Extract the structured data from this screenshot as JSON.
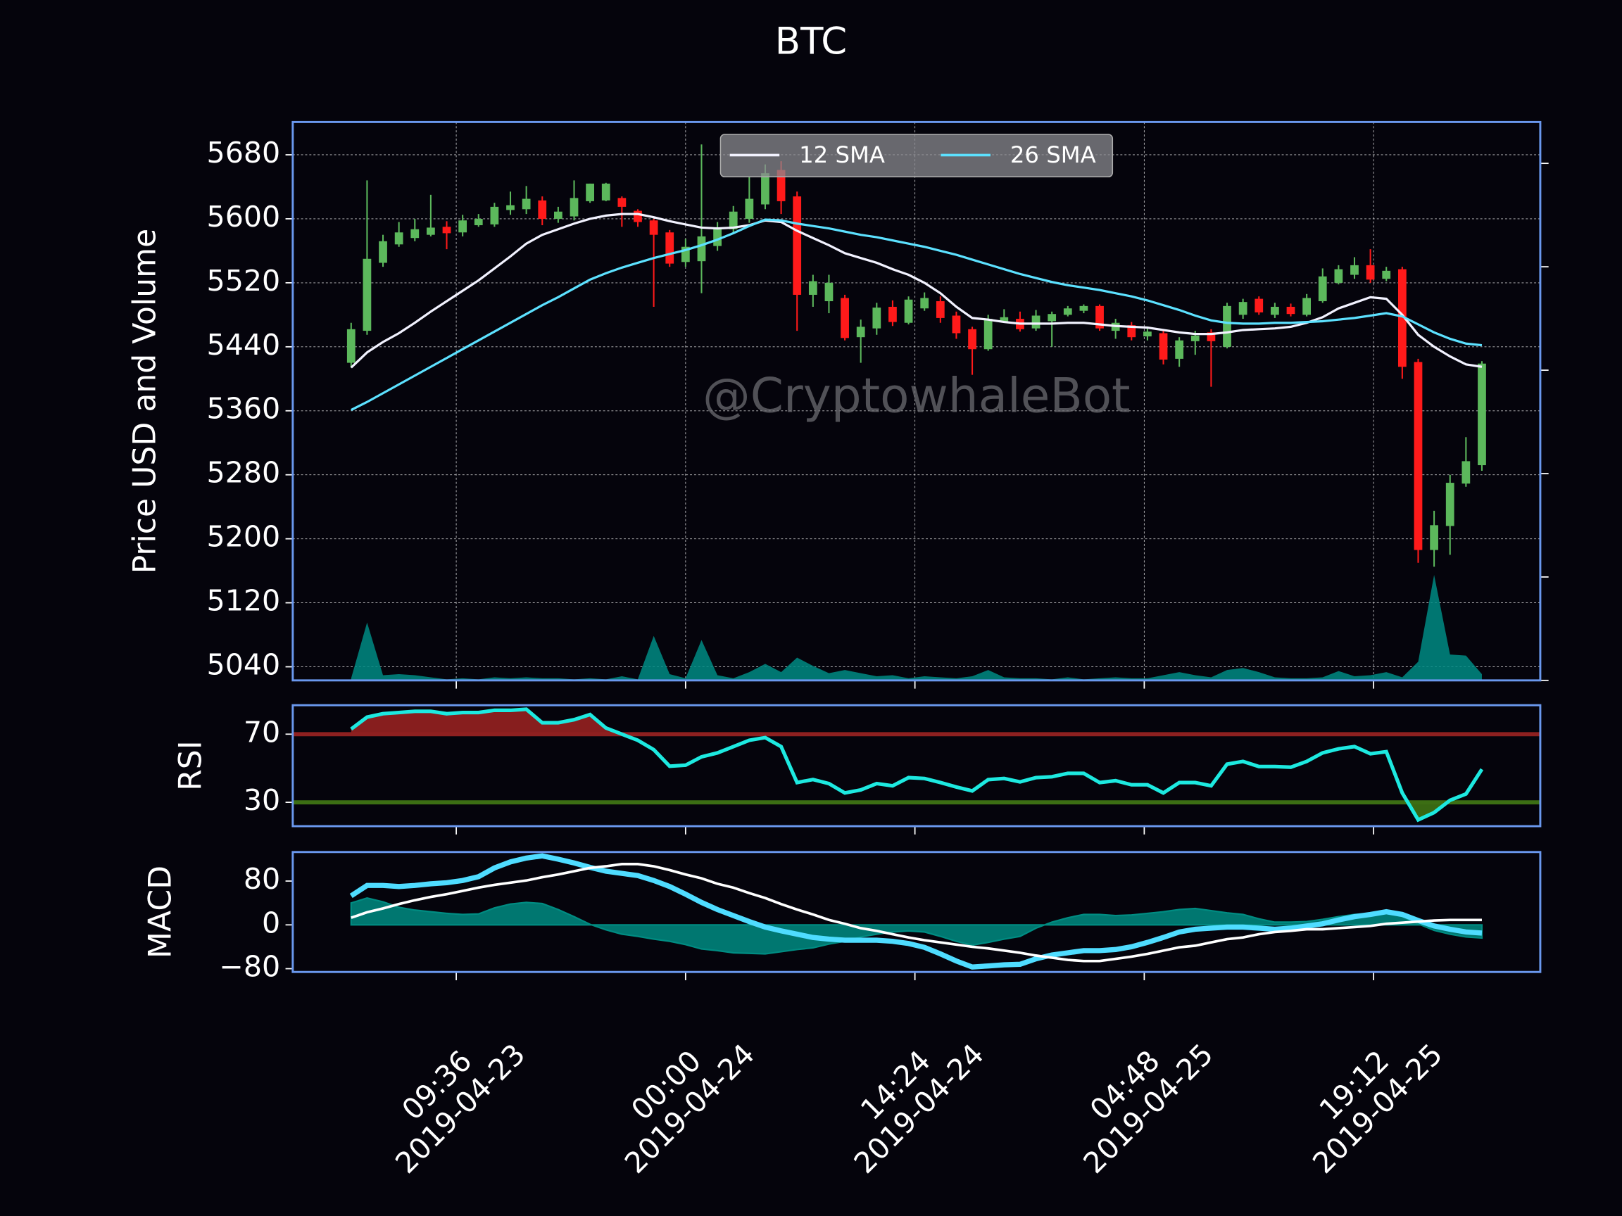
{
  "chart_data": [
    {
      "type": "candlestick",
      "title": "BTC",
      "ylabel": "Price USD and Volume",
      "annotation": "@CryptowhaleBot",
      "x": [
        "2019-04-23 03:00",
        "2019-04-23 04:00",
        "2019-04-23 05:00",
        "2019-04-23 06:00",
        "2019-04-23 07:00",
        "2019-04-23 08:00",
        "2019-04-23 09:00",
        "2019-04-23 10:00",
        "2019-04-23 11:00",
        "2019-04-23 12:00",
        "2019-04-23 13:00",
        "2019-04-23 14:00",
        "2019-04-23 15:00",
        "2019-04-23 16:00",
        "2019-04-23 17:00",
        "2019-04-23 18:00",
        "2019-04-23 19:00",
        "2019-04-23 20:00",
        "2019-04-23 21:00",
        "2019-04-23 22:00",
        "2019-04-23 23:00",
        "2019-04-24 00:00",
        "2019-04-24 01:00",
        "2019-04-24 02:00",
        "2019-04-24 03:00",
        "2019-04-24 04:00",
        "2019-04-24 05:00",
        "2019-04-24 06:00",
        "2019-04-24 07:00",
        "2019-04-24 08:00",
        "2019-04-24 09:00",
        "2019-04-24 10:00",
        "2019-04-24 11:00",
        "2019-04-24 12:00",
        "2019-04-24 13:00",
        "2019-04-24 14:00",
        "2019-04-24 15:00",
        "2019-04-24 16:00",
        "2019-04-24 17:00",
        "2019-04-24 18:00",
        "2019-04-24 19:00",
        "2019-04-24 20:00",
        "2019-04-24 21:00",
        "2019-04-24 22:00",
        "2019-04-24 23:00",
        "2019-04-25 00:00",
        "2019-04-25 01:00",
        "2019-04-25 02:00",
        "2019-04-25 03:00",
        "2019-04-25 04:00",
        "2019-04-25 05:00",
        "2019-04-25 06:00",
        "2019-04-25 07:00",
        "2019-04-25 08:00",
        "2019-04-25 09:00",
        "2019-04-25 10:00",
        "2019-04-25 11:00",
        "2019-04-25 12:00",
        "2019-04-25 13:00",
        "2019-04-25 14:00",
        "2019-04-25 15:00",
        "2019-04-25 16:00",
        "2019-04-25 17:00",
        "2019-04-25 18:00",
        "2019-04-25 19:00",
        "2019-04-25 20:00",
        "2019-04-25 21:00",
        "2019-04-25 22:00",
        "2019-04-25 23:00",
        "2019-04-26 00:00",
        "2019-04-26 01:00",
        "2019-04-26 02:00"
      ],
      "open": [
        5420,
        5460,
        5545,
        5568,
        5576,
        5580,
        5590,
        5583,
        5592,
        5593,
        5611,
        5612,
        5623,
        5600,
        5603,
        5622,
        5623,
        5626,
        5610,
        5598,
        5583,
        5546,
        5547,
        5566,
        5587,
        5600,
        5618,
        5661,
        5628,
        5505,
        5497,
        5501,
        5452,
        5463,
        5490,
        5470,
        5488,
        5497,
        5479,
        5462,
        5437,
        5472,
        5475,
        5463,
        5472,
        5480,
        5485,
        5491,
        5460,
        5467,
        5453,
        5457,
        5425,
        5447,
        5458,
        5440,
        5480,
        5500,
        5480,
        5490,
        5480,
        5497,
        5520,
        5530,
        5542,
        5525,
        5537,
        5421,
        5186,
        5216,
        5269,
        5292
      ],
      "high": [
        5470,
        5648,
        5580,
        5596,
        5600,
        5630,
        5597,
        5605,
        5606,
        5620,
        5634,
        5641,
        5628,
        5615,
        5648,
        5644,
        5645,
        5628,
        5612,
        5600,
        5586,
        5575,
        5693,
        5596,
        5616,
        5652,
        5668,
        5672,
        5634,
        5530,
        5530,
        5505,
        5474,
        5495,
        5498,
        5503,
        5508,
        5503,
        5484,
        5465,
        5480,
        5487,
        5484,
        5486,
        5484,
        5491,
        5493,
        5493,
        5475,
        5471,
        5463,
        5461,
        5452,
        5460,
        5462,
        5495,
        5500,
        5503,
        5495,
        5494,
        5506,
        5538,
        5542,
        5552,
        5562,
        5540,
        5540,
        5425,
        5235,
        5280,
        5327,
        5422
      ],
      "low": [
        5414,
        5455,
        5540,
        5565,
        5572,
        5578,
        5562,
        5578,
        5590,
        5590,
        5605,
        5606,
        5592,
        5595,
        5598,
        5620,
        5622,
        5590,
        5590,
        5490,
        5540,
        5540,
        5507,
        5560,
        5582,
        5595,
        5612,
        5606,
        5460,
        5490,
        5482,
        5448,
        5420,
        5455,
        5466,
        5468,
        5485,
        5470,
        5450,
        5405,
        5435,
        5470,
        5459,
        5460,
        5440,
        5478,
        5482,
        5460,
        5450,
        5448,
        5448,
        5418,
        5415,
        5430,
        5390,
        5438,
        5475,
        5480,
        5476,
        5478,
        5478,
        5495,
        5518,
        5525,
        5520,
        5522,
        5400,
        5170,
        5165,
        5180,
        5265,
        5285
      ],
      "close": [
        5462,
        5550,
        5572,
        5583,
        5587,
        5589,
        5582,
        5598,
        5600,
        5615,
        5617,
        5625,
        5600,
        5609,
        5626,
        5644,
        5644,
        5615,
        5596,
        5580,
        5544,
        5565,
        5578,
        5587,
        5609,
        5625,
        5657,
        5622,
        5505,
        5522,
        5520,
        5451,
        5465,
        5489,
        5471,
        5499,
        5501,
        5476,
        5457,
        5437,
        5475,
        5477,
        5462,
        5479,
        5481,
        5488,
        5491,
        5463,
        5470,
        5452,
        5459,
        5424,
        5448,
        5454,
        5447,
        5491,
        5496,
        5483,
        5490,
        5481,
        5501,
        5528,
        5537,
        5542,
        5524,
        5535,
        5415,
        5186,
        5217,
        5270,
        5297,
        5419
      ],
      "up_color": "#5cb85c",
      "down_color": "#ff1a1a",
      "series": [
        {
          "name": "12 SMA",
          "color": "#f2f2ff",
          "values": [
            5414,
            5433,
            5446,
            5457,
            5470,
            5484,
            5497,
            5510,
            5523,
            5538,
            5553,
            5569,
            5580,
            5587,
            5594,
            5600,
            5604,
            5606,
            5606,
            5602,
            5597,
            5593,
            5589,
            5588,
            5589,
            5592,
            5598,
            5596,
            5585,
            5576,
            5567,
            5557,
            5551,
            5545,
            5537,
            5530,
            5520,
            5507,
            5490,
            5476,
            5474,
            5471,
            5469,
            5469,
            5469,
            5470,
            5470,
            5468,
            5466,
            5465,
            5464,
            5461,
            5458,
            5456,
            5456,
            5458,
            5461,
            5462,
            5463,
            5465,
            5470,
            5477,
            5488,
            5495,
            5502,
            5500,
            5480,
            5455,
            5440,
            5428,
            5418,
            5415
          ]
        },
        {
          "name": "26 SMA",
          "color": "#5ce1ff",
          "values": [
            5361,
            5371,
            5382,
            5393,
            5404,
            5415,
            5426,
            5437,
            5448,
            5459,
            5470,
            5481,
            5492,
            5502,
            5513,
            5524,
            5532,
            5539,
            5545,
            5551,
            5556,
            5561,
            5567,
            5574,
            5582,
            5591,
            5599,
            5598,
            5594,
            5591,
            5588,
            5584,
            5580,
            5577,
            5573,
            5569,
            5565,
            5560,
            5555,
            5549,
            5543,
            5537,
            5531,
            5526,
            5521,
            5517,
            5514,
            5511,
            5507,
            5503,
            5498,
            5492,
            5486,
            5479,
            5473,
            5470,
            5469,
            5469,
            5470,
            5470,
            5471,
            5472,
            5474,
            5476,
            5479,
            5482,
            5478,
            5468,
            5458,
            5450,
            5444,
            5442
          ]
        }
      ],
      "volume": [
        0.02,
        0.56,
        0.05,
        0.06,
        0.05,
        0.03,
        0.01,
        0.02,
        0.01,
        0.03,
        0.02,
        0.03,
        0.02,
        0.02,
        0.01,
        0.02,
        0.01,
        0.04,
        0.01,
        0.43,
        0.06,
        0.02,
        0.39,
        0.05,
        0.02,
        0.08,
        0.16,
        0.08,
        0.22,
        0.14,
        0.07,
        0.1,
        0.07,
        0.04,
        0.05,
        0.02,
        0.04,
        0.03,
        0.02,
        0.04,
        0.1,
        0.03,
        0.02,
        0.02,
        0.01,
        0.03,
        0.01,
        0.02,
        0.03,
        0.02,
        0.02,
        0.05,
        0.08,
        0.05,
        0.03,
        0.1,
        0.12,
        0.08,
        0.03,
        0.02,
        0.02,
        0.03,
        0.09,
        0.04,
        0.05,
        0.08,
        0.03,
        0.18,
        1.02,
        0.25,
        0.24,
        0.06
      ],
      "volume_color": "#008b84",
      "xlim": [
        "2019-04-22 23:20",
        "2019-04-26 05:40"
      ],
      "xticks": [
        {
          "value": "2019-04-23 09:36",
          "label": [
            "09:36",
            "2019-04-23"
          ]
        },
        {
          "value": "2019-04-24 00:00",
          "label": [
            "00:00",
            "2019-04-24"
          ]
        },
        {
          "value": "2019-04-24 14:24",
          "label": [
            "14:24",
            "2019-04-24"
          ]
        },
        {
          "value": "2019-04-25 04:48",
          "label": [
            "04:48",
            "2019-04-25"
          ]
        },
        {
          "value": "2019-04-25 19:12",
          "label": [
            "19:12",
            "2019-04-25"
          ]
        }
      ],
      "ylim": [
        5023,
        5721
      ],
      "yticks": [
        5040,
        5120,
        5200,
        5280,
        5360,
        5440,
        5520,
        5600,
        5680
      ],
      "y2lim": [
        0,
        5.4
      ],
      "y2ticks": [
        0,
        1,
        2,
        3,
        4,
        5
      ],
      "grid": true,
      "legend": "upper center"
    },
    {
      "type": "line",
      "ylabel": "RSI",
      "series": [
        {
          "color": "#1de9e0",
          "values": [
            73,
            80,
            82,
            82.7,
            83.4,
            83.4,
            82,
            82.7,
            82.7,
            84,
            84,
            84.6,
            76.7,
            76.7,
            78.5,
            81.5,
            73.6,
            70,
            66.4,
            60.9,
            51.2,
            51.8,
            56.7,
            59,
            62.7,
            66.4,
            68,
            62.7,
            41.6,
            43.4,
            41,
            35.5,
            37.3,
            41,
            39.7,
            44.5,
            44,
            41.6,
            39,
            36.7,
            43.3,
            44,
            42,
            44.5,
            45,
            47,
            47,
            41.6,
            42.7,
            40.3,
            40.3,
            35.5,
            41.6,
            41.6,
            39.7,
            52.4,
            54,
            51,
            51,
            50.6,
            54,
            59,
            61.4,
            62.7,
            58.5,
            59.7,
            35.5,
            19.7,
            24,
            31.2,
            34.9,
            49.4
          ]
        }
      ],
      "reference_lines": [
        {
          "value": 70,
          "color": "#8e2020",
          "fill": "above"
        },
        {
          "value": 30,
          "color": "#3c6e14",
          "fill": "below"
        }
      ],
      "ylim": [
        16,
        87
      ],
      "yticks": [
        30,
        70
      ]
    },
    {
      "type": "macd",
      "ylabel": "MACD",
      "series": [
        {
          "color": "#4fdcff",
          "values": [
            53,
            72,
            72,
            70,
            72,
            75,
            77,
            81,
            88,
            104,
            115,
            122,
            126,
            120,
            113,
            105,
            98,
            94,
            90,
            81,
            70,
            56,
            41,
            28,
            17,
            6,
            -4,
            -11,
            -17,
            -23,
            -26,
            -28,
            -28,
            -28,
            -30,
            -34,
            -41,
            -53,
            -66,
            -77,
            -75,
            -73,
            -72,
            -62,
            -55,
            -51,
            -47,
            -47,
            -45,
            -40,
            -32,
            -23,
            -13,
            -8,
            -6,
            -4,
            -4,
            -6,
            -8,
            -6,
            -2,
            2,
            9,
            15,
            19,
            24,
            19,
            8,
            -2,
            -8,
            -13,
            -15
          ]
        },
        {
          "color": "#ffffff",
          "values": [
            13,
            23,
            30,
            38,
            45,
            51,
            56,
            62,
            68,
            73,
            77,
            81,
            87,
            92,
            98,
            104,
            107,
            111,
            111,
            107,
            100,
            92,
            85,
            75,
            68,
            58,
            49,
            38,
            28,
            19,
            9,
            2,
            -6,
            -11,
            -17,
            -23,
            -28,
            -32,
            -36,
            -40,
            -43,
            -47,
            -51,
            -56,
            -60,
            -64,
            -66,
            -66,
            -62,
            -58,
            -53,
            -47,
            -41,
            -38,
            -32,
            -26,
            -23,
            -17,
            -13,
            -11,
            -8,
            -8,
            -6,
            -4,
            -2,
            2,
            4,
            6,
            8,
            9,
            9,
            9
          ]
        }
      ],
      "histogram": {
        "color": "#008c82",
        "values": [
          40,
          49,
          42,
          32,
          27,
          24,
          21,
          19,
          20,
          31,
          38,
          41,
          39,
          28,
          15,
          1,
          -9,
          -17,
          -21,
          -26,
          -30,
          -36,
          -44,
          -47,
          -51,
          -52,
          -53,
          -49,
          -45,
          -42,
          -35,
          -30,
          -22,
          -17,
          -13,
          -11,
          -13,
          -21,
          -30,
          -37,
          -32,
          -26,
          -21,
          -6,
          5,
          13,
          19,
          19,
          17,
          18,
          21,
          24,
          28,
          30,
          26,
          22,
          19,
          11,
          5,
          5,
          6,
          10,
          15,
          19,
          21,
          22,
          15,
          2,
          -10,
          -17,
          -22,
          -24
        ]
      },
      "ylim": [
        -86,
        133
      ],
      "yticks": [
        80,
        0,
        {
          "value": -80,
          "label": "−80"
        }
      ]
    }
  ]
}
